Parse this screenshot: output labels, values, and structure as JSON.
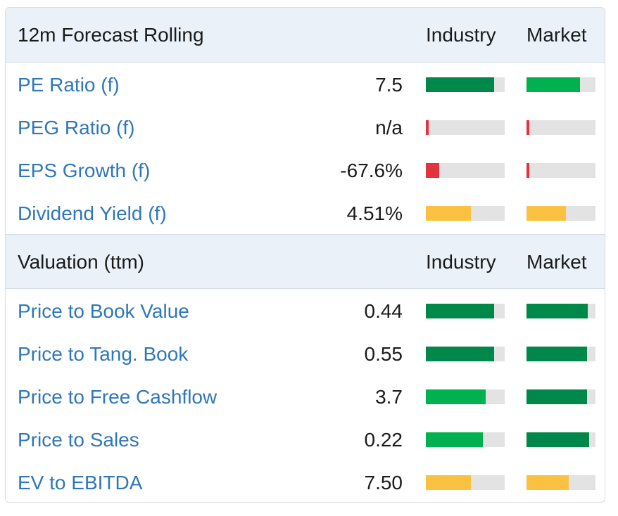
{
  "colors": {
    "dark_green": "#00874a",
    "green": "#00b14f",
    "red": "#e2333f",
    "amber": "#fbc140",
    "track": "#e3e3e3",
    "link": "#2f77b8",
    "header_bg": "#eaf1f9"
  },
  "sections": [
    {
      "title": "12m Forecast Rolling",
      "industry_label": "Industry",
      "market_label": "Market",
      "rows": [
        {
          "label": "PE Ratio (f)",
          "value": "7.5",
          "industry": {
            "fill": 0.87,
            "color": "#00874a"
          },
          "market": {
            "fill": 0.78,
            "color": "#00b14f"
          }
        },
        {
          "label": "PEG Ratio (f)",
          "value": "n/a",
          "industry": {
            "fill": 0.04,
            "color": "#e2333f"
          },
          "market": {
            "fill": 0.04,
            "color": "#e2333f"
          }
        },
        {
          "label": "EPS Growth (f)",
          "value": "-67.6%",
          "industry": {
            "fill": 0.17,
            "color": "#e2333f"
          },
          "market": {
            "fill": 0.04,
            "color": "#e2333f"
          }
        },
        {
          "label": "Dividend Yield (f)",
          "value": "4.51%",
          "industry": {
            "fill": 0.57,
            "color": "#fbc140"
          },
          "market": {
            "fill": 0.57,
            "color": "#fbc140"
          }
        }
      ]
    },
    {
      "title": "Valuation (ttm)",
      "industry_label": "Industry",
      "market_label": "Market",
      "rows": [
        {
          "label": "Price to Book Value",
          "value": "0.44",
          "industry": {
            "fill": 0.87,
            "color": "#00874a"
          },
          "market": {
            "fill": 0.89,
            "color": "#00874a"
          }
        },
        {
          "label": "Price to Tang. Book",
          "value": "0.55",
          "industry": {
            "fill": 0.87,
            "color": "#00874a"
          },
          "market": {
            "fill": 0.88,
            "color": "#00874a"
          }
        },
        {
          "label": "Price to Free Cashflow",
          "value": "3.7",
          "industry": {
            "fill": 0.76,
            "color": "#00b14f"
          },
          "market": {
            "fill": 0.88,
            "color": "#00874a"
          }
        },
        {
          "label": "Price to Sales",
          "value": "0.22",
          "industry": {
            "fill": 0.72,
            "color": "#00b14f"
          },
          "market": {
            "fill": 0.91,
            "color": "#00874a"
          }
        },
        {
          "label": "EV to EBITDA",
          "value": "7.50",
          "industry": {
            "fill": 0.57,
            "color": "#fbc140"
          },
          "market": {
            "fill": 0.61,
            "color": "#fbc140"
          }
        }
      ]
    }
  ]
}
